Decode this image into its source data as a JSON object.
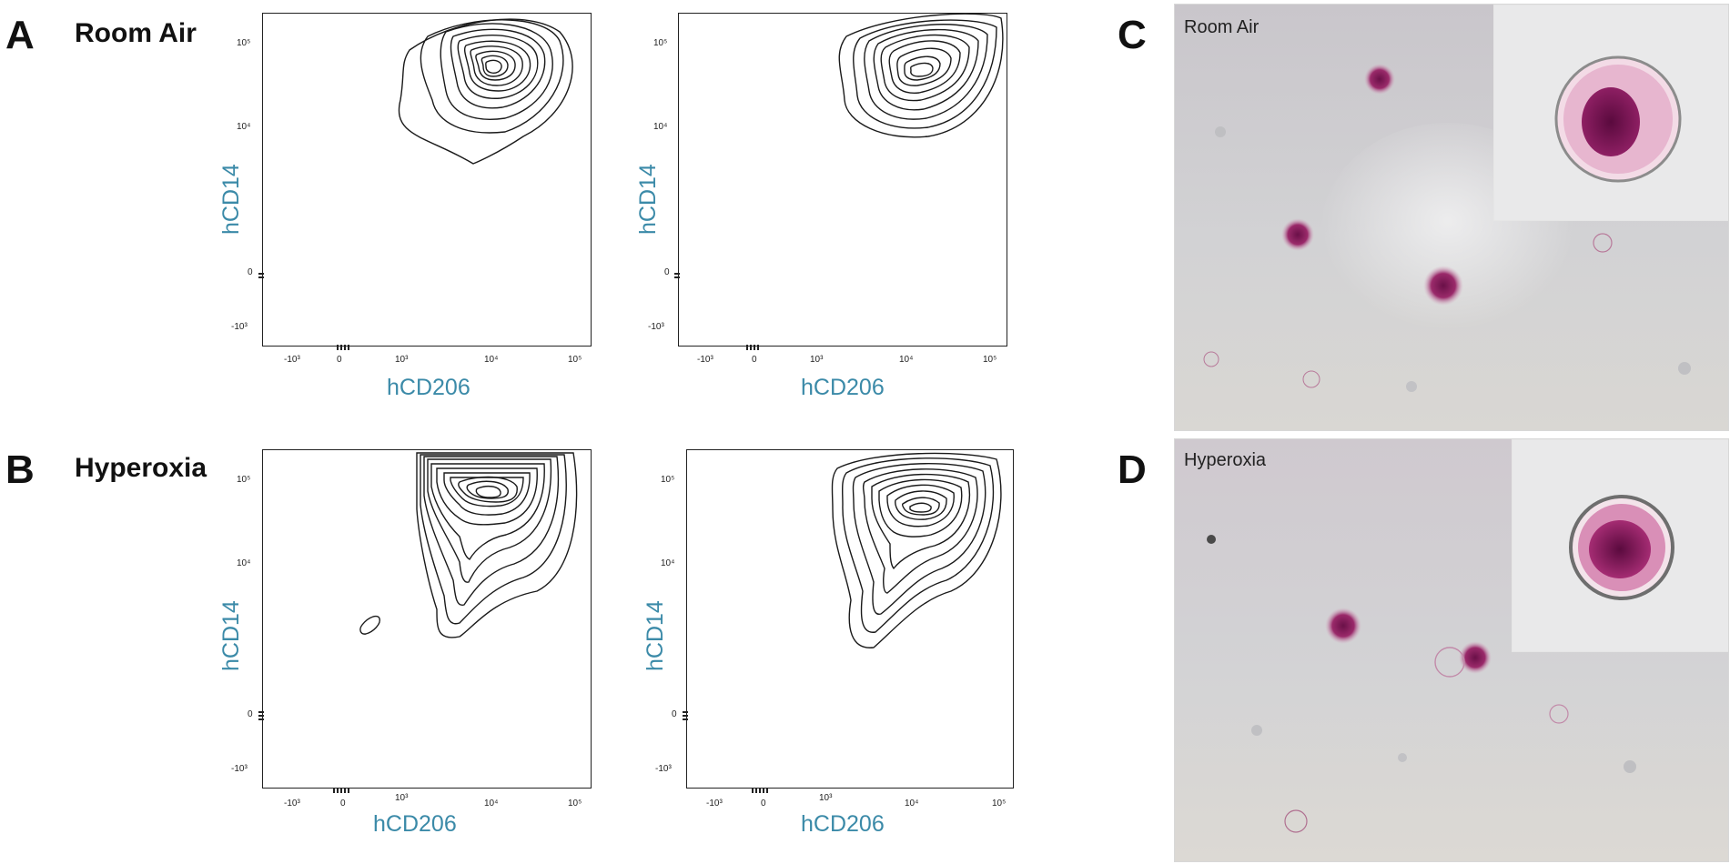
{
  "panels": {
    "A": {
      "letter": "A",
      "condition": "Room Air"
    },
    "B": {
      "letter": "B",
      "condition": "Hyperoxia"
    },
    "C": {
      "letter": "C",
      "label": "Room Air"
    },
    "D": {
      "letter": "D",
      "label": "Hyperoxia"
    }
  },
  "flow_plots": {
    "xlabel": "hCD206",
    "ylabel": "hCD14",
    "x_ticks": [
      "-10³",
      "0",
      "10³",
      "10⁴",
      "10⁵"
    ],
    "y_ticks": [
      "10⁵",
      "10⁴",
      "0",
      "-10³"
    ]
  },
  "colors": {
    "axis_label": "#3b8aa8",
    "contour": "#1a1a1a",
    "micrograph_bg": "#cfd0d2",
    "cell_stain": "#8a1e5a"
  },
  "chart_data": [
    {
      "type": "contour",
      "panel": "A",
      "condition": "Room Air",
      "replicate": 1,
      "xlabel": "hCD206",
      "ylabel": "hCD14",
      "x_scale": "biexponential",
      "y_scale": "biexponential",
      "peak": {
        "x": 9000,
        "y": 45000
      }
    },
    {
      "type": "contour",
      "panel": "A",
      "condition": "Room Air",
      "replicate": 2,
      "xlabel": "hCD206",
      "ylabel": "hCD14",
      "x_scale": "biexponential",
      "y_scale": "biexponential",
      "peak": {
        "x": 13000,
        "y": 38000
      }
    },
    {
      "type": "contour",
      "panel": "B",
      "condition": "Hyperoxia",
      "replicate": 1,
      "xlabel": "hCD206",
      "ylabel": "hCD14",
      "x_scale": "biexponential",
      "y_scale": "biexponential",
      "peak": {
        "x": 10000,
        "y": 60000
      }
    },
    {
      "type": "contour",
      "panel": "B",
      "condition": "Hyperoxia",
      "replicate": 2,
      "xlabel": "hCD206",
      "ylabel": "hCD14",
      "x_scale": "biexponential",
      "y_scale": "biexponential",
      "peak": {
        "x": 12000,
        "y": 70000
      }
    }
  ]
}
